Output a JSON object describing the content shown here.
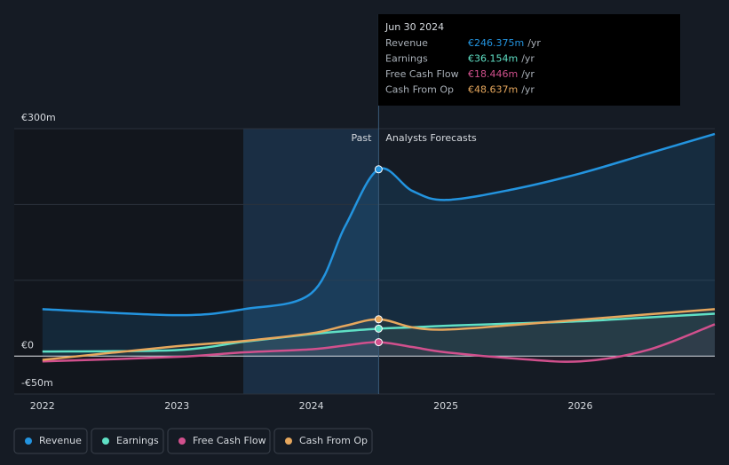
{
  "chart_data": {
    "type": "line",
    "x": [
      2022,
      2023,
      2023.5,
      2024,
      2024.25,
      2024.5,
      2024.75,
      2025,
      2025.5,
      2026,
      2026.5,
      2027
    ],
    "xlim": [
      2021.79,
      2027
    ],
    "xticks": [
      2022,
      2023,
      2024,
      2025,
      2026
    ],
    "ylim": [
      -50,
      300
    ],
    "yticks": [
      {
        "value": 300,
        "label": "€300m"
      },
      {
        "value": 0,
        "label": "€0"
      },
      {
        "value": -50,
        "label": "-€50m"
      }
    ],
    "gridlines": [
      100,
      200,
      300
    ],
    "past_label": "Past",
    "forecast_label": "Analysts Forecasts",
    "series": [
      {
        "name": "Revenue",
        "color": "#2394df",
        "values": [
          62,
          54,
          62,
          83,
          171,
          246.4,
          218,
          206,
          220,
          241,
          267,
          293
        ]
      },
      {
        "name": "Earnings",
        "color": "#5fe0c5",
        "values": [
          6,
          8,
          19,
          29,
          33,
          36.2,
          38,
          40,
          43,
          46,
          51,
          56
        ]
      },
      {
        "name": "Free Cash Flow",
        "color": "#d1508d",
        "values": [
          -7,
          -1,
          5,
          9,
          14,
          18.4,
          12,
          5,
          -3,
          -7,
          8,
          42
        ]
      },
      {
        "name": "Cash From Op",
        "color": "#e6a75d",
        "values": [
          -5,
          13,
          20,
          30,
          40,
          48.6,
          38,
          35,
          41,
          48,
          55,
          62
        ]
      }
    ],
    "tooltip": {
      "date": "Jun 30 2024",
      "index": 5,
      "rows": [
        {
          "label": "Revenue",
          "value": "€246.375m",
          "unit": "/yr"
        },
        {
          "label": "Earnings",
          "value": "€36.154m",
          "unit": "/yr"
        },
        {
          "label": "Free Cash Flow",
          "value": "€18.446m",
          "unit": "/yr"
        },
        {
          "label": "Cash From Op",
          "value": "€48.637m",
          "unit": "/yr"
        }
      ]
    }
  }
}
